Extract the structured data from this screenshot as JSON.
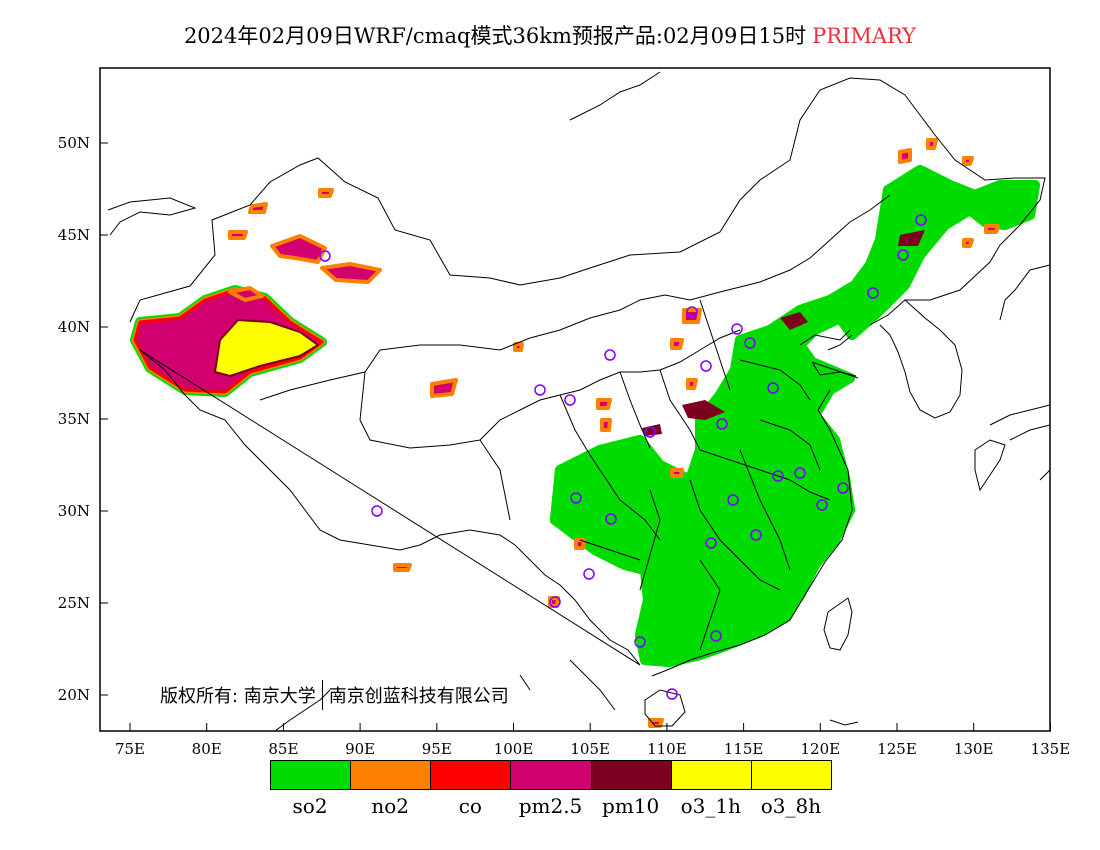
{
  "header": {
    "title": "2024年02月09日WRF/cmaq模式36km预报产品:02月09日15时",
    "status": "PRIMARY"
  },
  "axes": {
    "lat_labels": [
      "50N",
      "45N",
      "40N",
      "35N",
      "30N",
      "25N",
      "20N"
    ],
    "lon_labels": [
      "75E",
      "80E",
      "85E",
      "90E",
      "95E",
      "100E",
      "105E",
      "110E",
      "115E",
      "120E",
      "125E",
      "130E",
      "135E"
    ]
  },
  "legend": {
    "items": [
      {
        "label": "so2",
        "color": "#00dc00"
      },
      {
        "label": "no2",
        "color": "#ff7f00"
      },
      {
        "label": "co",
        "color": "#ff0000"
      },
      {
        "label": "pm2.5",
        "color": "#d2006e"
      },
      {
        "label": "pm10",
        "color": "#7d001e"
      },
      {
        "label": "o3_1h",
        "color": "#ffff00"
      },
      {
        "label": "o3_8h",
        "color": "#ffff00"
      }
    ]
  },
  "copyright": {
    "owner": "版权所有: 南京大学",
    "partner": "南京创蓝科技有限公司"
  },
  "colors": {
    "pm25": "#d2006e",
    "pm10": "#7d001e",
    "so2": "#00dc00",
    "no2": "#ff7f00",
    "co": "#ff0000",
    "o3": "#ffff00",
    "station_marker": "#7f00ff"
  }
}
